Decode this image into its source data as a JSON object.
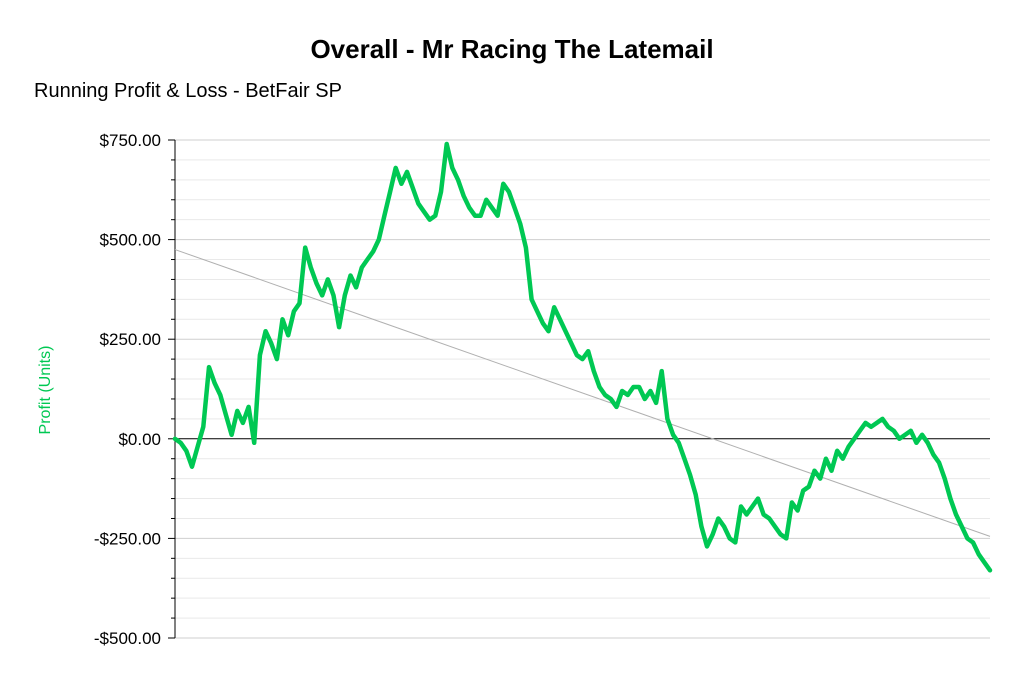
{
  "title": "Overall - Mr Racing The Latemail",
  "subtitle": "Running Profit & Loss - BetFair SP",
  "colors": {
    "line": "#00c853",
    "trend": "#b0b0b0",
    "ylabel": "#00c853",
    "grid": "#dcdcdc",
    "zero": "#000000"
  },
  "chart_data": {
    "type": "line",
    "title": "Overall - Mr Racing The Latemail",
    "subtitle": "Running Profit & Loss - BetFair SP",
    "ylabel": "Profit (Units)",
    "xlabel": "",
    "ylim": [
      -500,
      750
    ],
    "yticks": [
      750,
      500,
      250,
      0,
      -250,
      -500
    ],
    "ytick_labels": [
      "$750.00",
      "$500.00",
      "$250.00",
      "$0.00",
      "-$250.00",
      "-$500.00"
    ],
    "grid": true,
    "x_axis_labels": false,
    "series": [
      {
        "values": [
          0,
          -10,
          -30,
          -70,
          -20,
          30,
          180,
          140,
          110,
          60,
          10,
          70,
          40,
          80,
          -10,
          210,
          270,
          240,
          200,
          300,
          260,
          320,
          340,
          480,
          430,
          390,
          360,
          400,
          360,
          280,
          360,
          410,
          380,
          430,
          450,
          470,
          500,
          560,
          620,
          680,
          640,
          670,
          630,
          590,
          570,
          550,
          560,
          620,
          740,
          680,
          650,
          610,
          580,
          560,
          560,
          600,
          580,
          560,
          640,
          620,
          580,
          540,
          480,
          350,
          320,
          290,
          270,
          330,
          300,
          270,
          240,
          210,
          200,
          220,
          170,
          130,
          110,
          100,
          80,
          120,
          110,
          130,
          130,
          100,
          120,
          90,
          170,
          50,
          10,
          -10,
          -50,
          -90,
          -140,
          -220,
          -270,
          -240,
          -200,
          -220,
          -250,
          -260,
          -170,
          -190,
          -170,
          -150,
          -190,
          -200,
          -220,
          -240,
          -250,
          -160,
          -180,
          -130,
          -120,
          -80,
          -100,
          -50,
          -80,
          -30,
          -50,
          -20,
          0,
          20,
          40,
          30,
          40,
          50,
          30,
          20,
          0,
          10,
          20,
          -10,
          10,
          -10,
          -40,
          -60,
          -100,
          -150,
          -190,
          -220,
          -250,
          -260,
          -290,
          -310,
          -330
        ]
      }
    ],
    "trendline": {
      "start": 475,
      "end": -245
    }
  }
}
